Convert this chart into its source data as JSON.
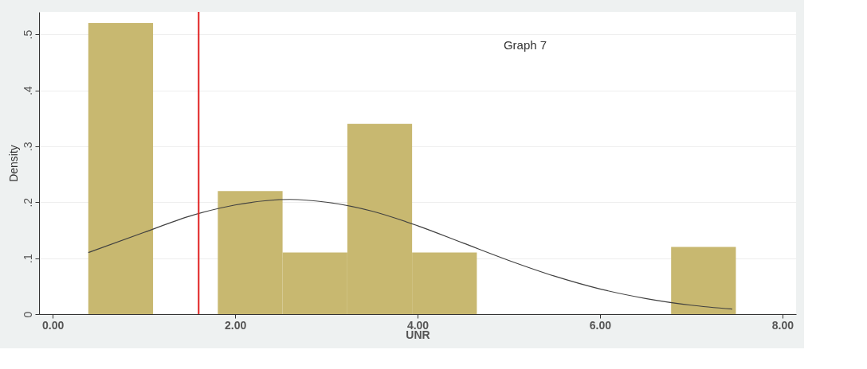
{
  "chart_data": {
    "type": "histogram",
    "xlabel": "UNR",
    "ylabel": "Density",
    "bins": [
      0.39,
      1.1,
      1.81,
      2.52,
      3.23,
      3.94,
      4.65,
      5.36,
      6.07,
      6.78,
      7.49
    ],
    "values": [
      0.52,
      0,
      0.22,
      0.11,
      0.34,
      0.11,
      0,
      0,
      0,
      0.12
    ],
    "color": "#c8b870",
    "series": [
      {
        "type": "line",
        "color": "#404040",
        "x": [
          0.39,
          1.0,
          1.5,
          2.0,
          2.6,
          3.0,
          3.5,
          4.0,
          4.5,
          5.0,
          5.5,
          6.0,
          6.5,
          7.0,
          7.45
        ],
        "values": [
          0.11,
          0.146,
          0.175,
          0.195,
          0.205,
          0.2,
          0.184,
          0.158,
          0.127,
          0.096,
          0.068,
          0.045,
          0.028,
          0.016,
          0.009
        ]
      }
    ],
    "ref_lines": [
      {
        "axis": "x",
        "value": 1.6,
        "color": "#e02020"
      }
    ],
    "annotations": [
      "Graph 7"
    ],
    "xlim": [
      -0.15,
      8.15
    ],
    "xticks": [
      {
        "value": 0,
        "label": "0.00"
      },
      {
        "value": 2,
        "label": "2.00"
      },
      {
        "value": 4,
        "label": "4.00"
      },
      {
        "value": 6,
        "label": "6.00"
      },
      {
        "value": 8,
        "label": "8.00"
      }
    ],
    "ylim": [
      0,
      0.54
    ],
    "yticks": [
      0,
      {
        "value": 0.1,
        "label": ".1"
      },
      {
        "value": 0.2,
        "label": ".2"
      },
      {
        "value": 0.3,
        "label": ".3"
      },
      {
        "value": 0.4,
        "label": ".4"
      },
      {
        "value": 0.5,
        "label": ".5"
      }
    ],
    "grid": "y"
  }
}
